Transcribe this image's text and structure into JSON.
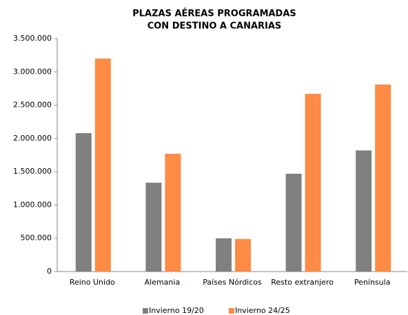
{
  "chart_data": {
    "type": "bar",
    "title": [
      "PLAZAS AÉREAS PROGRAMADAS",
      "CON DESTINO A CANARIAS"
    ],
    "categories": [
      "Reino Unido",
      "Alemania",
      "Países Nórdicos",
      "Resto extranjero",
      "Península"
    ],
    "series": [
      {
        "name": "Invierno 19/20",
        "color": "#808080",
        "values": [
          2080000,
          1335000,
          500000,
          1470000,
          1820000
        ]
      },
      {
        "name": "Invierno 24/25",
        "color": "#ff8b45",
        "values": [
          3200000,
          1770000,
          490000,
          2670000,
          2810000
        ]
      }
    ],
    "ylim": [
      0,
      3500000
    ],
    "yticks": [
      0,
      {
        "value": 500000,
        "label": "500.000"
      },
      {
        "value": 1000000,
        "label": "1.000.000"
      },
      {
        "value": 1500000,
        "label": "1.500.000"
      },
      {
        "value": 2000000,
        "label": "2.000.000"
      },
      {
        "value": 2500000,
        "label": "2.500.000"
      },
      {
        "value": 3000000,
        "label": "3.000.000"
      },
      {
        "value": 3500000,
        "label": "3.500.000"
      }
    ],
    "grid": false,
    "legend": "bottom"
  }
}
